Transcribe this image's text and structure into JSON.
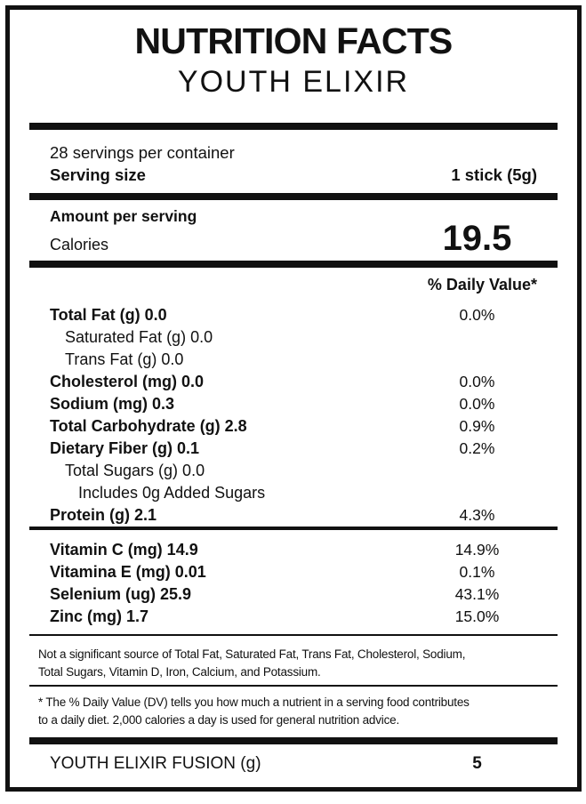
{
  "colors": {
    "ink": "#111111",
    "background": "#ffffff"
  },
  "header": {
    "title": "NUTRITION FACTS",
    "subtitle": "YOUTH ELIXIR"
  },
  "serving": {
    "servings_per_container": "28 servings per container",
    "serving_size_label": "Serving size",
    "serving_size_value": "1 stick (5g)"
  },
  "calories": {
    "amount_label": "Amount per serving",
    "label": "Calories",
    "value": "19.5"
  },
  "daily_value_header": "% Daily Value*",
  "nutrients": [
    {
      "label": "Total Fat (g) 0.0",
      "dv": "0.0%",
      "bold": true,
      "indent": 0
    },
    {
      "label": "Saturated Fat (g) 0.0",
      "dv": "",
      "bold": false,
      "indent": 1
    },
    {
      "label": "Trans Fat (g) 0.0",
      "dv": "",
      "bold": false,
      "indent": 1
    },
    {
      "label": "Cholesterol (mg) 0.0",
      "dv": "0.0%",
      "bold": true,
      "indent": 0
    },
    {
      "label": "Sodium (mg) 0.3",
      "dv": "0.0%",
      "bold": true,
      "indent": 0
    },
    {
      "label": "Total Carbohydrate (g) 2.8",
      "dv": "0.9%",
      "bold": true,
      "indent": 0
    },
    {
      "label": "Dietary Fiber (g) 0.1",
      "dv": "0.2%",
      "bold": true,
      "indent": 0
    },
    {
      "label": "Total Sugars (g) 0.0",
      "dv": "",
      "bold": false,
      "indent": 1
    },
    {
      "label": "Includes 0g Added Sugars",
      "dv": "",
      "bold": false,
      "indent": 2
    },
    {
      "label": "Protein (g) 2.1",
      "dv": "4.3%",
      "bold": true,
      "indent": 0
    }
  ],
  "micronutrients": [
    {
      "label": "Vitamin C (mg) 14.9",
      "dv": "14.9%"
    },
    {
      "label": "Vitamina E (mg) 0.01",
      "dv": "0.1%"
    },
    {
      "label": "Selenium (ug) 25.9",
      "dv": "43.1%"
    },
    {
      "label": "Zinc (mg) 1.7",
      "dv": "15.0%"
    }
  ],
  "footnotes": {
    "not_significant": "Not a significant source of Total Fat, Saturated Fat, Trans Fat, Cholesterol, Sodium,\nTotal Sugars, Vitamin D, Iron, Calcium, and Potassium.",
    "daily_value_note": "* The % Daily Value (DV) tells you how much a nutrient in a serving food contributes\nto a daily diet. 2,000 calories a day is used for general nutrition advice."
  },
  "footer": {
    "label": "YOUTH ELIXIR FUSION (g)",
    "value": "5"
  }
}
